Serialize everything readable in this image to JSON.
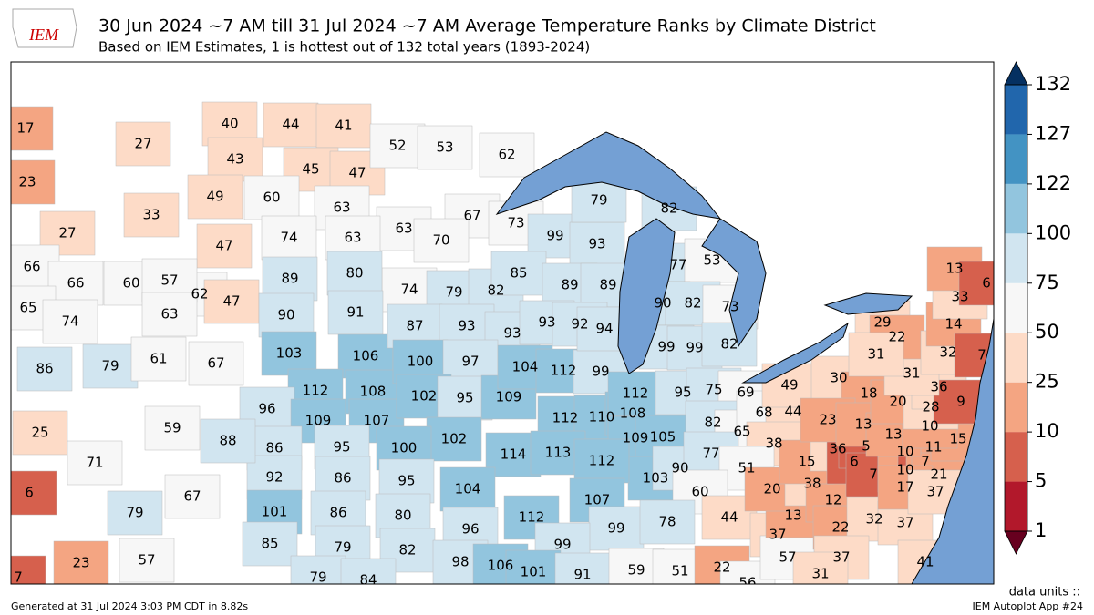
{
  "header": {
    "title": "30 Jun 2024 ~7 AM till 31 Jul 2024 ~7 AM Average Temperature Ranks by Climate District",
    "subtitle": "Based on IEM Estimates, 1 is hottest out of 132 total years (1893-2024)",
    "logo": "IEM"
  },
  "map": {
    "ranks": [
      17,
      27,
      23,
      33,
      27,
      40,
      44,
      41,
      43,
      45,
      47,
      49,
      60,
      63,
      52,
      53,
      62,
      63,
      67,
      70,
      74,
      79,
      82,
      47,
      62,
      47,
      74,
      63,
      89,
      80,
      90,
      91,
      66,
      66,
      60,
      57,
      65,
      74,
      63,
      86,
      79,
      61,
      67,
      103,
      106,
      112,
      108,
      96,
      109,
      107,
      87,
      93,
      93,
      100,
      97,
      102,
      95,
      109,
      104,
      112,
      99,
      112,
      110,
      108,
      73,
      99,
      93,
      79,
      82,
      85,
      89,
      89,
      93,
      92,
      94,
      77,
      53,
      90,
      82,
      73,
      99,
      99,
      82,
      112,
      95,
      109,
      105,
      103,
      90,
      75,
      69,
      82,
      65,
      77,
      68,
      44,
      49,
      38,
      51,
      60,
      102,
      114,
      113,
      112,
      107,
      104,
      96,
      112,
      99,
      78,
      99,
      86,
      95,
      100,
      92,
      86,
      95,
      101,
      86,
      80,
      25,
      59,
      88,
      71,
      67,
      6,
      79,
      85,
      79,
      82,
      79,
      84,
      98,
      106,
      101,
      91,
      59,
      51,
      23,
      57,
      7,
      22,
      56,
      44,
      37,
      57,
      13,
      20,
      38,
      12,
      22,
      32,
      37,
      15,
      36,
      6,
      5,
      7,
      10,
      10,
      7,
      11,
      21,
      17,
      37,
      15,
      30,
      18,
      23,
      13,
      13,
      10,
      20,
      28,
      36,
      9,
      31,
      29,
      22,
      31,
      32,
      14,
      33,
      13,
      6,
      7,
      41,
      37,
      31
    ]
  },
  "colorbar": {
    "ticks": [
      1,
      5,
      10,
      25,
      50,
      75,
      100,
      122,
      127,
      132
    ],
    "colors": [
      "#b2182b",
      "#d6604d",
      "#f4a582",
      "#fddbc7",
      "#f7f7f7",
      "#d1e5f0",
      "#92c5de",
      "#4393c3",
      "#2166ac"
    ],
    "under_color": "#67001f",
    "over_color": "#053061",
    "units": "data units ::"
  },
  "footer": {
    "generated": "Generated at 31 Jul 2024 3:03 PM CDT in 8.82s",
    "app": "IEM Autoplot App #24"
  }
}
